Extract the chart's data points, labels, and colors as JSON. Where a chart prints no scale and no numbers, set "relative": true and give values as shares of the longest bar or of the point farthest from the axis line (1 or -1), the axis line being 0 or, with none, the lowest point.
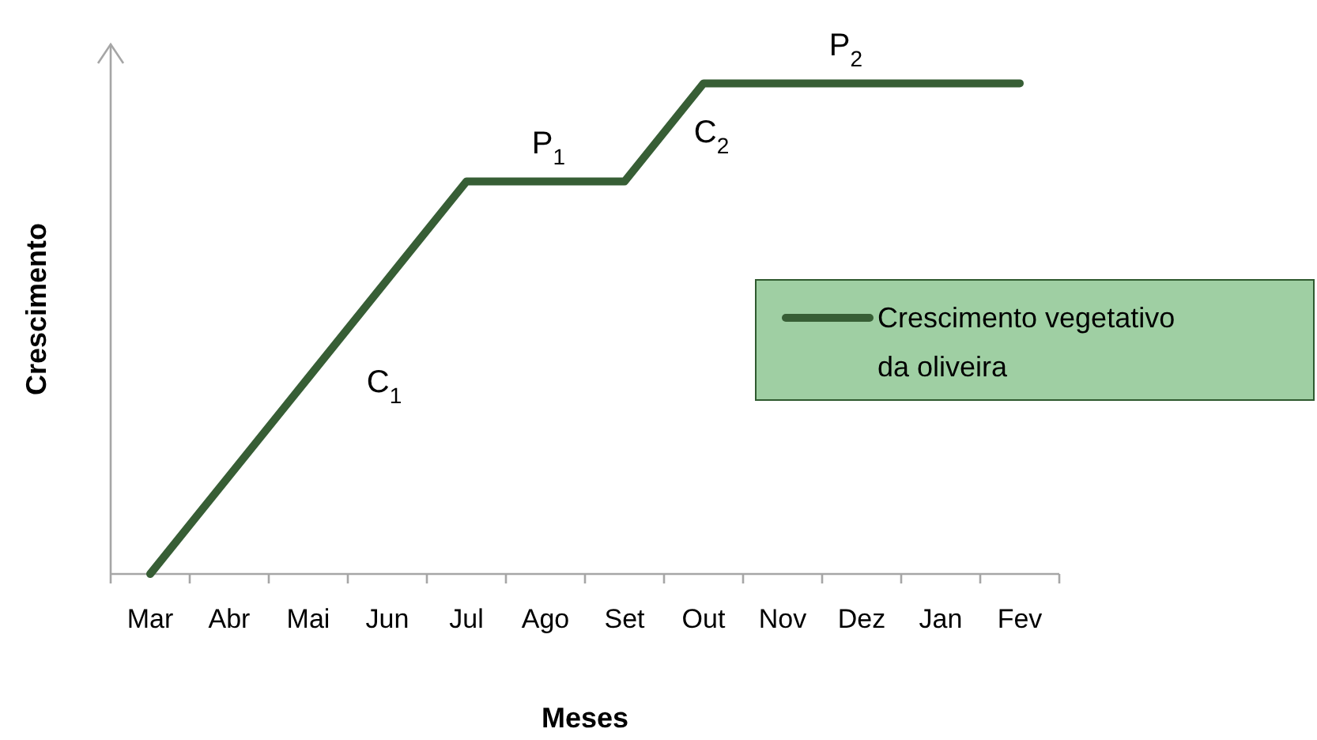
{
  "chart_data": {
    "type": "line",
    "relative": true,
    "xlabel": "Meses",
    "ylabel": "Crescimento",
    "categories": [
      "Mar",
      "Abr",
      "Mai",
      "Jun",
      "Jul",
      "Ago",
      "Set",
      "Out",
      "Nov",
      "Dez",
      "Jan",
      "Fev"
    ],
    "series": [
      {
        "name": "Crescimento vegetativo da oliveira",
        "color": "#375e35",
        "values": [
          0,
          0.2,
          0.4,
          0.6,
          0.8,
          0.8,
          0.8,
          1,
          1,
          1,
          1,
          1
        ]
      }
    ],
    "annotations": [
      "C$_{1}$",
      "P$_{1}$",
      "C$_{2}$",
      "P$_{2}$"
    ],
    "legend": "right",
    "grid": false,
    "marker": "none",
    "line_style": "solid"
  }
}
